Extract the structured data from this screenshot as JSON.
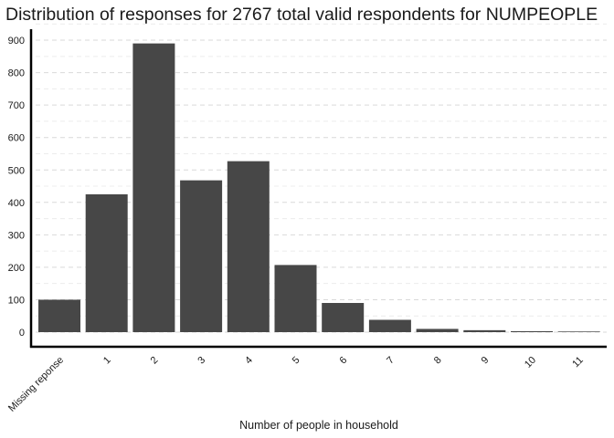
{
  "chart_data": {
    "type": "bar",
    "title": "Distribution of responses for 2767 total valid respondents for NUMPEOPLE",
    "xlabel": "Number of people in household",
    "ylabel": "",
    "categories": [
      "Missing reponse",
      "1",
      "2",
      "3",
      "4",
      "5",
      "6",
      "7",
      "8",
      "9",
      "10",
      "11"
    ],
    "values": [
      100,
      425,
      890,
      468,
      527,
      207,
      90,
      38,
      10,
      6,
      3,
      2
    ],
    "ylim": [
      0,
      950
    ],
    "yticks": [
      0,
      100,
      200,
      300,
      400,
      500,
      600,
      700,
      800,
      900
    ],
    "grid": "horizontal dashed",
    "bar_color": "#474747",
    "grid_color": "#d9d9d9"
  }
}
